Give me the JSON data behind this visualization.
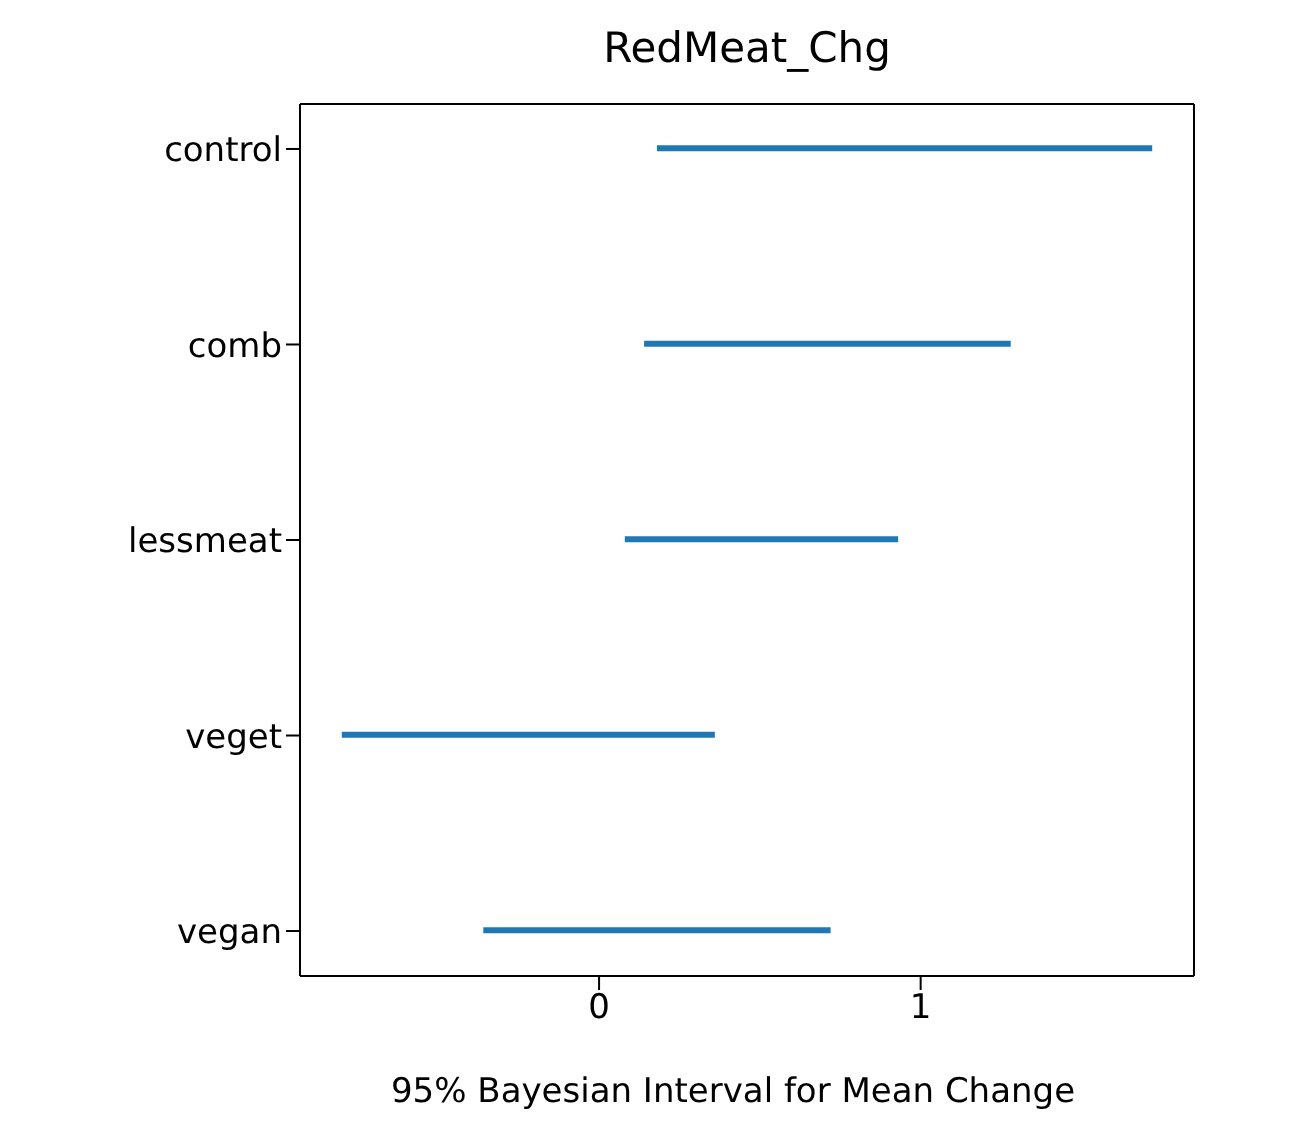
{
  "chart_data": {
    "type": "bar",
    "orientation": "horizontal",
    "title": "RedMeat_Chg",
    "xlabel": "95% Bayesian Interval for Mean Change",
    "categories": [
      "control",
      "comb",
      "lessmeat",
      "veget",
      "vegan"
    ],
    "base": [
      0.18,
      0.14,
      0.08,
      -0.8,
      -0.36
    ],
    "values": [
      1.54,
      1.14,
      0.85,
      1.16,
      1.08
    ],
    "color": "#1f77b4",
    "xlim": [
      -0.93,
      1.85
    ],
    "xticks": [
      0,
      1
    ],
    "grid": false
  }
}
